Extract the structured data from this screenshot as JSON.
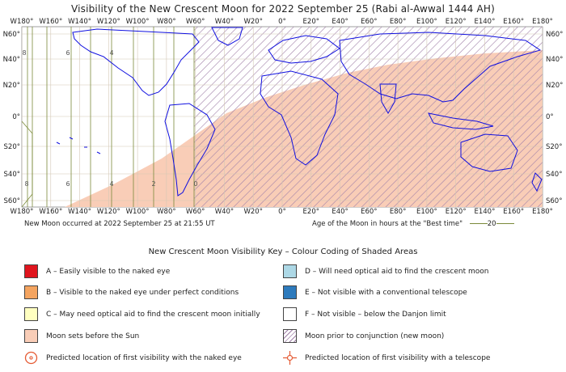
{
  "title": "Visibility of the New Crescent Moon for 2022 September 25 (Rabi al-Awwal 1444 AH)",
  "axes": {
    "longitudes": [
      "W180°",
      "W160°",
      "W140°",
      "W120°",
      "W100°",
      "W80°",
      "W60°",
      "W40°",
      "W20°",
      "0°",
      "E20°",
      "E40°",
      "E60°",
      "E80°",
      "E100°",
      "E120°",
      "E140°",
      "E160°",
      "E180°"
    ],
    "latitudes_left": [
      "N60°",
      "N40°",
      "N20°",
      "0°",
      "S20°",
      "S40°",
      "S60°"
    ],
    "latitudes_right": [
      "N60°",
      "N40°",
      "N20°",
      "0°",
      "S20°",
      "S40°",
      "S60°"
    ]
  },
  "hour_lines": {
    "top": [
      "8",
      "6",
      "4"
    ],
    "bottom": [
      "8",
      "6",
      "4",
      "2",
      "0"
    ]
  },
  "notes": {
    "new_moon": "New Moon occurred at 2022 September 25 at 21:55 UT",
    "age_label": "Age of the Moon in hours at the \"Best time\"",
    "age_value": "20"
  },
  "key": {
    "title": "New Crescent Moon Visibility Key – Colour Coding of Shaded Areas",
    "items": [
      {
        "label": "A – Easily visible to the naked eye",
        "color": "#e0151e"
      },
      {
        "label": "D – Will need optical aid to find the crescent moon",
        "color": "#add8e6"
      },
      {
        "label": "B – Visible to the naked eye under perfect conditions",
        "color": "#f4a460"
      },
      {
        "label": "E – Not visible with a conventional telescope",
        "color": "#2e7bbd"
      },
      {
        "label": "C – May need optical aid to find the crescent moon initially",
        "color": "#ffffc0"
      },
      {
        "label": "F – Not visible – below the Danjon limit",
        "color": "#ffffff"
      },
      {
        "label": "Moon sets before the Sun",
        "color": "#f9cdb7"
      },
      {
        "label": "Moon prior to conjunction (new moon)",
        "color": "hatch"
      },
      {
        "label": "Predicted location of first visibility with the naked eye",
        "color": "#e55a33"
      },
      {
        "label": "Predicted location of first visibility with a telescope",
        "color": "#e55a33"
      }
    ]
  },
  "colors": {
    "land_outline": "#1010e0",
    "grid": "#d4c8b6",
    "moonset_fill": "#f9cdb7",
    "hatch": "#a080a8",
    "hour_line": "#7b8a3a"
  }
}
